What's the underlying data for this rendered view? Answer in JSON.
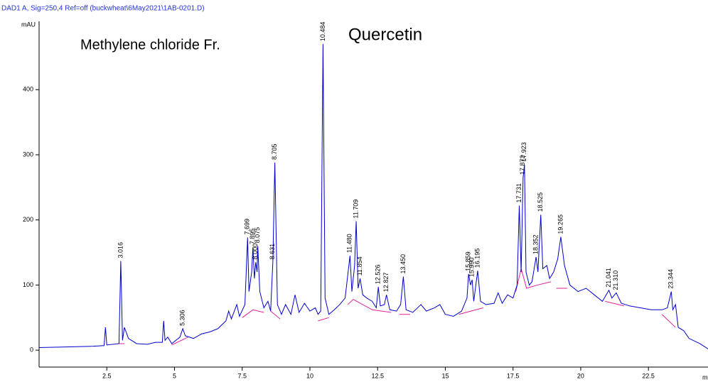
{
  "chart_data": {
    "type": "line",
    "title": "DAD1 A, Sig=250,4 Ref=off (buckwheat\\6May2021\\1AB-0201.D)",
    "y_label": "mAU",
    "x_label": "m",
    "annotations": [
      "Methylene  chloride Fr.",
      "Quercetin"
    ],
    "xlim": [
      0,
      24.7
    ],
    "ylim": [
      -26,
      505
    ],
    "xticks": [
      2.5,
      5,
      7.5,
      10,
      12.5,
      15,
      17.5,
      20,
      22.5
    ],
    "yticks": [
      0,
      100,
      200,
      300,
      400
    ],
    "series": [
      {
        "name": "DAD1 A",
        "color": "#0000cc",
        "x": [
          0,
          1,
          2,
          2.4,
          2.45,
          2.5,
          2.95,
          3.016,
          3.08,
          3.15,
          3.3,
          3.6,
          4.0,
          4.3,
          4.55,
          4.6,
          4.65,
          4.75,
          4.9,
          5.2,
          5.306,
          5.4,
          5.7,
          6.0,
          6.3,
          6.6,
          6.9,
          7.0,
          7.1,
          7.3,
          7.4,
          7.6,
          7.699,
          7.75,
          7.85,
          7.895,
          7.95,
          8.0,
          8.05,
          8.075,
          8.15,
          8.3,
          8.45,
          8.55,
          8.631,
          8.705,
          8.8,
          8.95,
          9.1,
          9.3,
          9.45,
          9.6,
          9.8,
          10.0,
          10.2,
          10.3,
          10.4,
          10.484,
          10.56,
          10.7,
          10.9,
          11.1,
          11.3,
          11.48,
          11.55,
          11.65,
          11.709,
          11.78,
          11.854,
          11.95,
          12.1,
          12.3,
          12.45,
          12.526,
          12.6,
          12.75,
          12.827,
          12.95,
          13.2,
          13.35,
          13.45,
          13.55,
          13.8,
          14.1,
          14.3,
          14.6,
          14.8,
          15.0,
          15.3,
          15.6,
          15.8,
          15.859,
          15.93,
          15.99,
          16.05,
          16.195,
          16.3,
          16.5,
          16.8,
          16.95,
          17.1,
          17.3,
          17.5,
          17.65,
          17.731,
          17.8,
          17.872,
          17.923,
          17.98,
          18.1,
          18.2,
          18.352,
          18.42,
          18.525,
          18.6,
          18.75,
          18.85,
          19.0,
          19.15,
          19.265,
          19.4,
          19.6,
          19.9,
          20.2,
          20.5,
          20.8,
          21.041,
          21.15,
          21.31,
          21.5,
          21.8,
          22.2,
          22.6,
          23.0,
          23.2,
          23.344,
          23.4,
          23.5,
          23.6,
          23.8,
          24.0,
          24.4,
          24.7
        ],
        "values": [
          4,
          5,
          6,
          7,
          35,
          8,
          10,
          137,
          15,
          35,
          18,
          10,
          9,
          12,
          12,
          45,
          15,
          20,
          10,
          20,
          33,
          22,
          18,
          25,
          28,
          33,
          45,
          60,
          48,
          70,
          52,
          70,
          173,
          90,
          120,
          158,
          110,
          135,
          120,
          160,
          90,
          65,
          75,
          60,
          135,
          288,
          70,
          55,
          70,
          55,
          85,
          58,
          72,
          60,
          65,
          55,
          60,
          470,
          80,
          55,
          62,
          70,
          80,
          145,
          90,
          130,
          198,
          95,
          110,
          85,
          80,
          75,
          65,
          97,
          68,
          70,
          85,
          62,
          60,
          70,
          113,
          62,
          58,
          70,
          60,
          65,
          70,
          55,
          52,
          60,
          80,
          117,
          100,
          108,
          75,
          122,
          75,
          70,
          72,
          88,
          72,
          85,
          80,
          100,
          222,
          120,
          265,
          285,
          120,
          100,
          105,
          143,
          120,
          208,
          125,
          130,
          110,
          120,
          140,
          174,
          130,
          100,
          90,
          95,
          85,
          75,
          92,
          80,
          88,
          72,
          68,
          65,
          62,
          62,
          65,
          90,
          62,
          70,
          35,
          30,
          18,
          10,
          2
        ]
      },
      {
        "name": "baseline",
        "color": "#e0209a",
        "x": [
          2.9,
          3.15,
          null,
          4.9,
          5.5,
          null,
          7.5,
          7.9,
          8.3,
          null,
          8.55,
          8.9,
          null,
          10.3,
          10.7,
          null,
          11.4,
          11.6,
          12.3,
          13.0,
          null,
          13.3,
          13.7,
          null,
          15.5,
          16.4,
          null,
          17.6,
          17.8,
          18.0,
          18.4,
          18.9,
          null,
          19.1,
          19.5,
          null,
          20.9,
          21.6,
          null,
          23.0,
          23.5
        ],
        "values": [
          10,
          10,
          null,
          8,
          20,
          null,
          50,
          62,
          58,
          null,
          60,
          48,
          null,
          45,
          50,
          null,
          70,
          78,
          62,
          58,
          null,
          55,
          55,
          null,
          55,
          65,
          null,
          90,
          125,
          95,
          100,
          105,
          null,
          95,
          95,
          null,
          75,
          68,
          null,
          55,
          35
        ]
      }
    ],
    "peaks": {
      "x": [
        3.016,
        5.306,
        7.699,
        7.895,
        8.0,
        8.075,
        8.631,
        8.705,
        10.484,
        11.48,
        11.709,
        11.854,
        12.526,
        12.827,
        13.45,
        15.859,
        15.99,
        16.195,
        17.731,
        17.872,
        17.923,
        18.352,
        18.525,
        19.265,
        21.041,
        21.31,
        23.344
      ],
      "x_labels": [
        "3.016",
        "5.306",
        "7.699",
        "7.895",
        "8.000",
        "8.075",
        "8.631",
        "8.705",
        "10.484",
        "11.480",
        "11.709",
        "11.854",
        "12.526",
        "12.827",
        "13.450",
        "15.859",
        "15.990",
        "16.195",
        "17.731",
        "17.872",
        "17.923",
        "18.352",
        "18.525",
        "19.265",
        "21.041",
        "21.310",
        "23.344"
      ],
      "values": [
        137,
        33,
        173,
        158,
        135,
        160,
        135,
        288,
        470,
        145,
        198,
        110,
        97,
        85,
        113,
        117,
        108,
        122,
        222,
        265,
        285,
        143,
        208,
        174,
        92,
        88,
        90
      ]
    }
  }
}
